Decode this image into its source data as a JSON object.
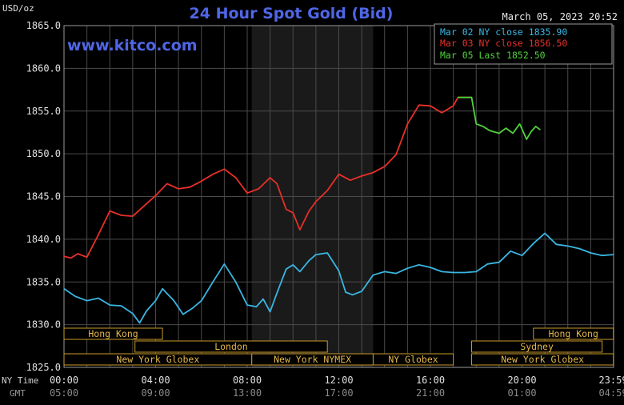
{
  "header": {
    "unit": "USD/oz",
    "title": "24 Hour Spot Gold (Bid)",
    "timestamp": "March 05, 2023 20:52",
    "watermark": "www.kitco.com"
  },
  "legend": [
    {
      "label": "Mar 02 NY close 1835.90",
      "color": "#39b6e3"
    },
    {
      "label": "Mar 03 NY close 1856.50",
      "color": "#e8302a"
    },
    {
      "label": "Mar 05 Last 1852.50",
      "color": "#4fd23a"
    }
  ],
  "axis_labels": {
    "ny_time": "NY Time",
    "gmt": "GMT"
  },
  "sessions": [
    {
      "label": "Hong Kong",
      "row": 0,
      "start": 0.0,
      "end": 4.3
    },
    {
      "label": "Hong Kong",
      "row": 0,
      "start": 20.5,
      "end": 23.99
    },
    {
      "label": "London",
      "row": 1,
      "start": 3.1,
      "end": 11.5
    },
    {
      "label": "Sydney",
      "row": 1,
      "start": 17.8,
      "end": 23.5
    },
    {
      "label": "New York Globex",
      "row": 2,
      "start": 0.0,
      "end": 8.2
    },
    {
      "label": "New York NYMEX",
      "row": 2,
      "start": 8.2,
      "end": 13.5
    },
    {
      "label": "NY Globex",
      "row": 2,
      "start": 13.5,
      "end": 17.0
    },
    {
      "label": "New York Globex",
      "row": 2,
      "start": 17.8,
      "end": 23.99
    }
  ],
  "chart_data": {
    "type": "line",
    "title": "24 Hour Spot Gold (Bid)",
    "ylabel": "USD/oz",
    "xlim": [
      0,
      24
    ],
    "ylim": [
      1825,
      1865
    ],
    "yticks": [
      "1865.0",
      "1860.0",
      "1855.0",
      "1850.0",
      "1845.0",
      "1840.0",
      "1835.0",
      "1830.0",
      "1825.0"
    ],
    "ytick_values": [
      1865,
      1860,
      1855,
      1850,
      1845,
      1840,
      1835,
      1830,
      1825
    ],
    "xticks_ny": [
      "00:00",
      "04:00",
      "08:00",
      "12:00",
      "16:00",
      "20:00",
      "23:59"
    ],
    "xticks_gmt": [
      "05:00",
      "09:00",
      "13:00",
      "17:00",
      "21:00",
      "01:00",
      "04:59"
    ],
    "xtick_values": [
      0,
      4,
      8,
      12,
      16,
      20,
      23.983
    ],
    "grid": true,
    "shaded_region": [
      8.2,
      13.5
    ],
    "series": [
      {
        "name": "Mar 02 NY close 1835.90",
        "color": "#39b6e3",
        "x": [
          0.0,
          0.5,
          1.0,
          1.5,
          2.0,
          2.5,
          3.0,
          3.3,
          3.6,
          4.0,
          4.3,
          4.8,
          5.2,
          5.6,
          6.0,
          6.5,
          7.0,
          7.5,
          8.0,
          8.4,
          8.7,
          9.0,
          9.3,
          9.7,
          10.0,
          10.3,
          10.7,
          11.0,
          11.5,
          12.0,
          12.3,
          12.6,
          13.0,
          13.5,
          14.0,
          14.5,
          15.0,
          15.5,
          16.0,
          16.5,
          17.0,
          17.5,
          18.0,
          18.5,
          19.0,
          19.5,
          20.0,
          20.5,
          21.0,
          21.5,
          22.0,
          22.5,
          23.0,
          23.5,
          23.99
        ],
        "y": [
          1834.2,
          1833.3,
          1832.8,
          1833.1,
          1832.3,
          1832.2,
          1831.3,
          1830.2,
          1831.6,
          1832.8,
          1834.2,
          1832.8,
          1831.2,
          1831.9,
          1832.8,
          1835.0,
          1837.1,
          1835.0,
          1832.3,
          1832.1,
          1833.0,
          1831.5,
          1833.7,
          1836.5,
          1837.0,
          1836.2,
          1837.5,
          1838.2,
          1838.4,
          1836.3,
          1833.8,
          1833.5,
          1833.9,
          1835.8,
          1836.2,
          1836.0,
          1836.6,
          1837.0,
          1836.7,
          1836.2,
          1836.1,
          1836.1,
          1836.2,
          1837.1,
          1837.3,
          1838.6,
          1838.1,
          1839.5,
          1840.7,
          1839.4,
          1839.2,
          1838.9,
          1838.4,
          1838.1,
          1838.2
        ]
      },
      {
        "name": "Mar 03 NY close 1856.50",
        "color": "#e8302a",
        "x": [
          0.0,
          0.3,
          0.6,
          1.0,
          1.5,
          2.0,
          2.5,
          3.0,
          3.5,
          4.0,
          4.5,
          5.0,
          5.5,
          6.0,
          6.5,
          7.0,
          7.5,
          8.0,
          8.5,
          9.0,
          9.3,
          9.7,
          10.0,
          10.3,
          10.7,
          11.0,
          11.5,
          12.0,
          12.5,
          13.0,
          13.5,
          14.0,
          14.5,
          15.0,
          15.5,
          16.0,
          16.5,
          17.0,
          17.2,
          17.8
        ],
        "y": [
          1838.0,
          1837.8,
          1838.3,
          1837.9,
          1840.5,
          1843.3,
          1842.8,
          1842.7,
          1843.9,
          1845.1,
          1846.5,
          1845.9,
          1846.1,
          1846.8,
          1847.6,
          1848.2,
          1847.2,
          1845.4,
          1845.9,
          1847.2,
          1846.5,
          1843.5,
          1843.1,
          1841.1,
          1843.3,
          1844.4,
          1845.7,
          1847.6,
          1846.9,
          1847.4,
          1847.8,
          1848.5,
          1849.9,
          1853.5,
          1855.7,
          1855.6,
          1854.8,
          1855.6,
          1856.6,
          1856.6
        ]
      },
      {
        "name": "Mar 05 Last 1852.50",
        "color": "#4fd23a",
        "x": [
          17.2,
          17.5,
          17.8,
          18.0,
          18.3,
          18.6,
          19.0,
          19.3,
          19.6,
          19.9,
          20.2,
          20.4,
          20.6,
          20.8
        ],
        "y": [
          1856.6,
          1856.6,
          1856.6,
          1853.5,
          1853.2,
          1852.7,
          1852.4,
          1853.0,
          1852.4,
          1853.5,
          1851.7,
          1852.6,
          1853.2,
          1852.8
        ]
      }
    ]
  }
}
